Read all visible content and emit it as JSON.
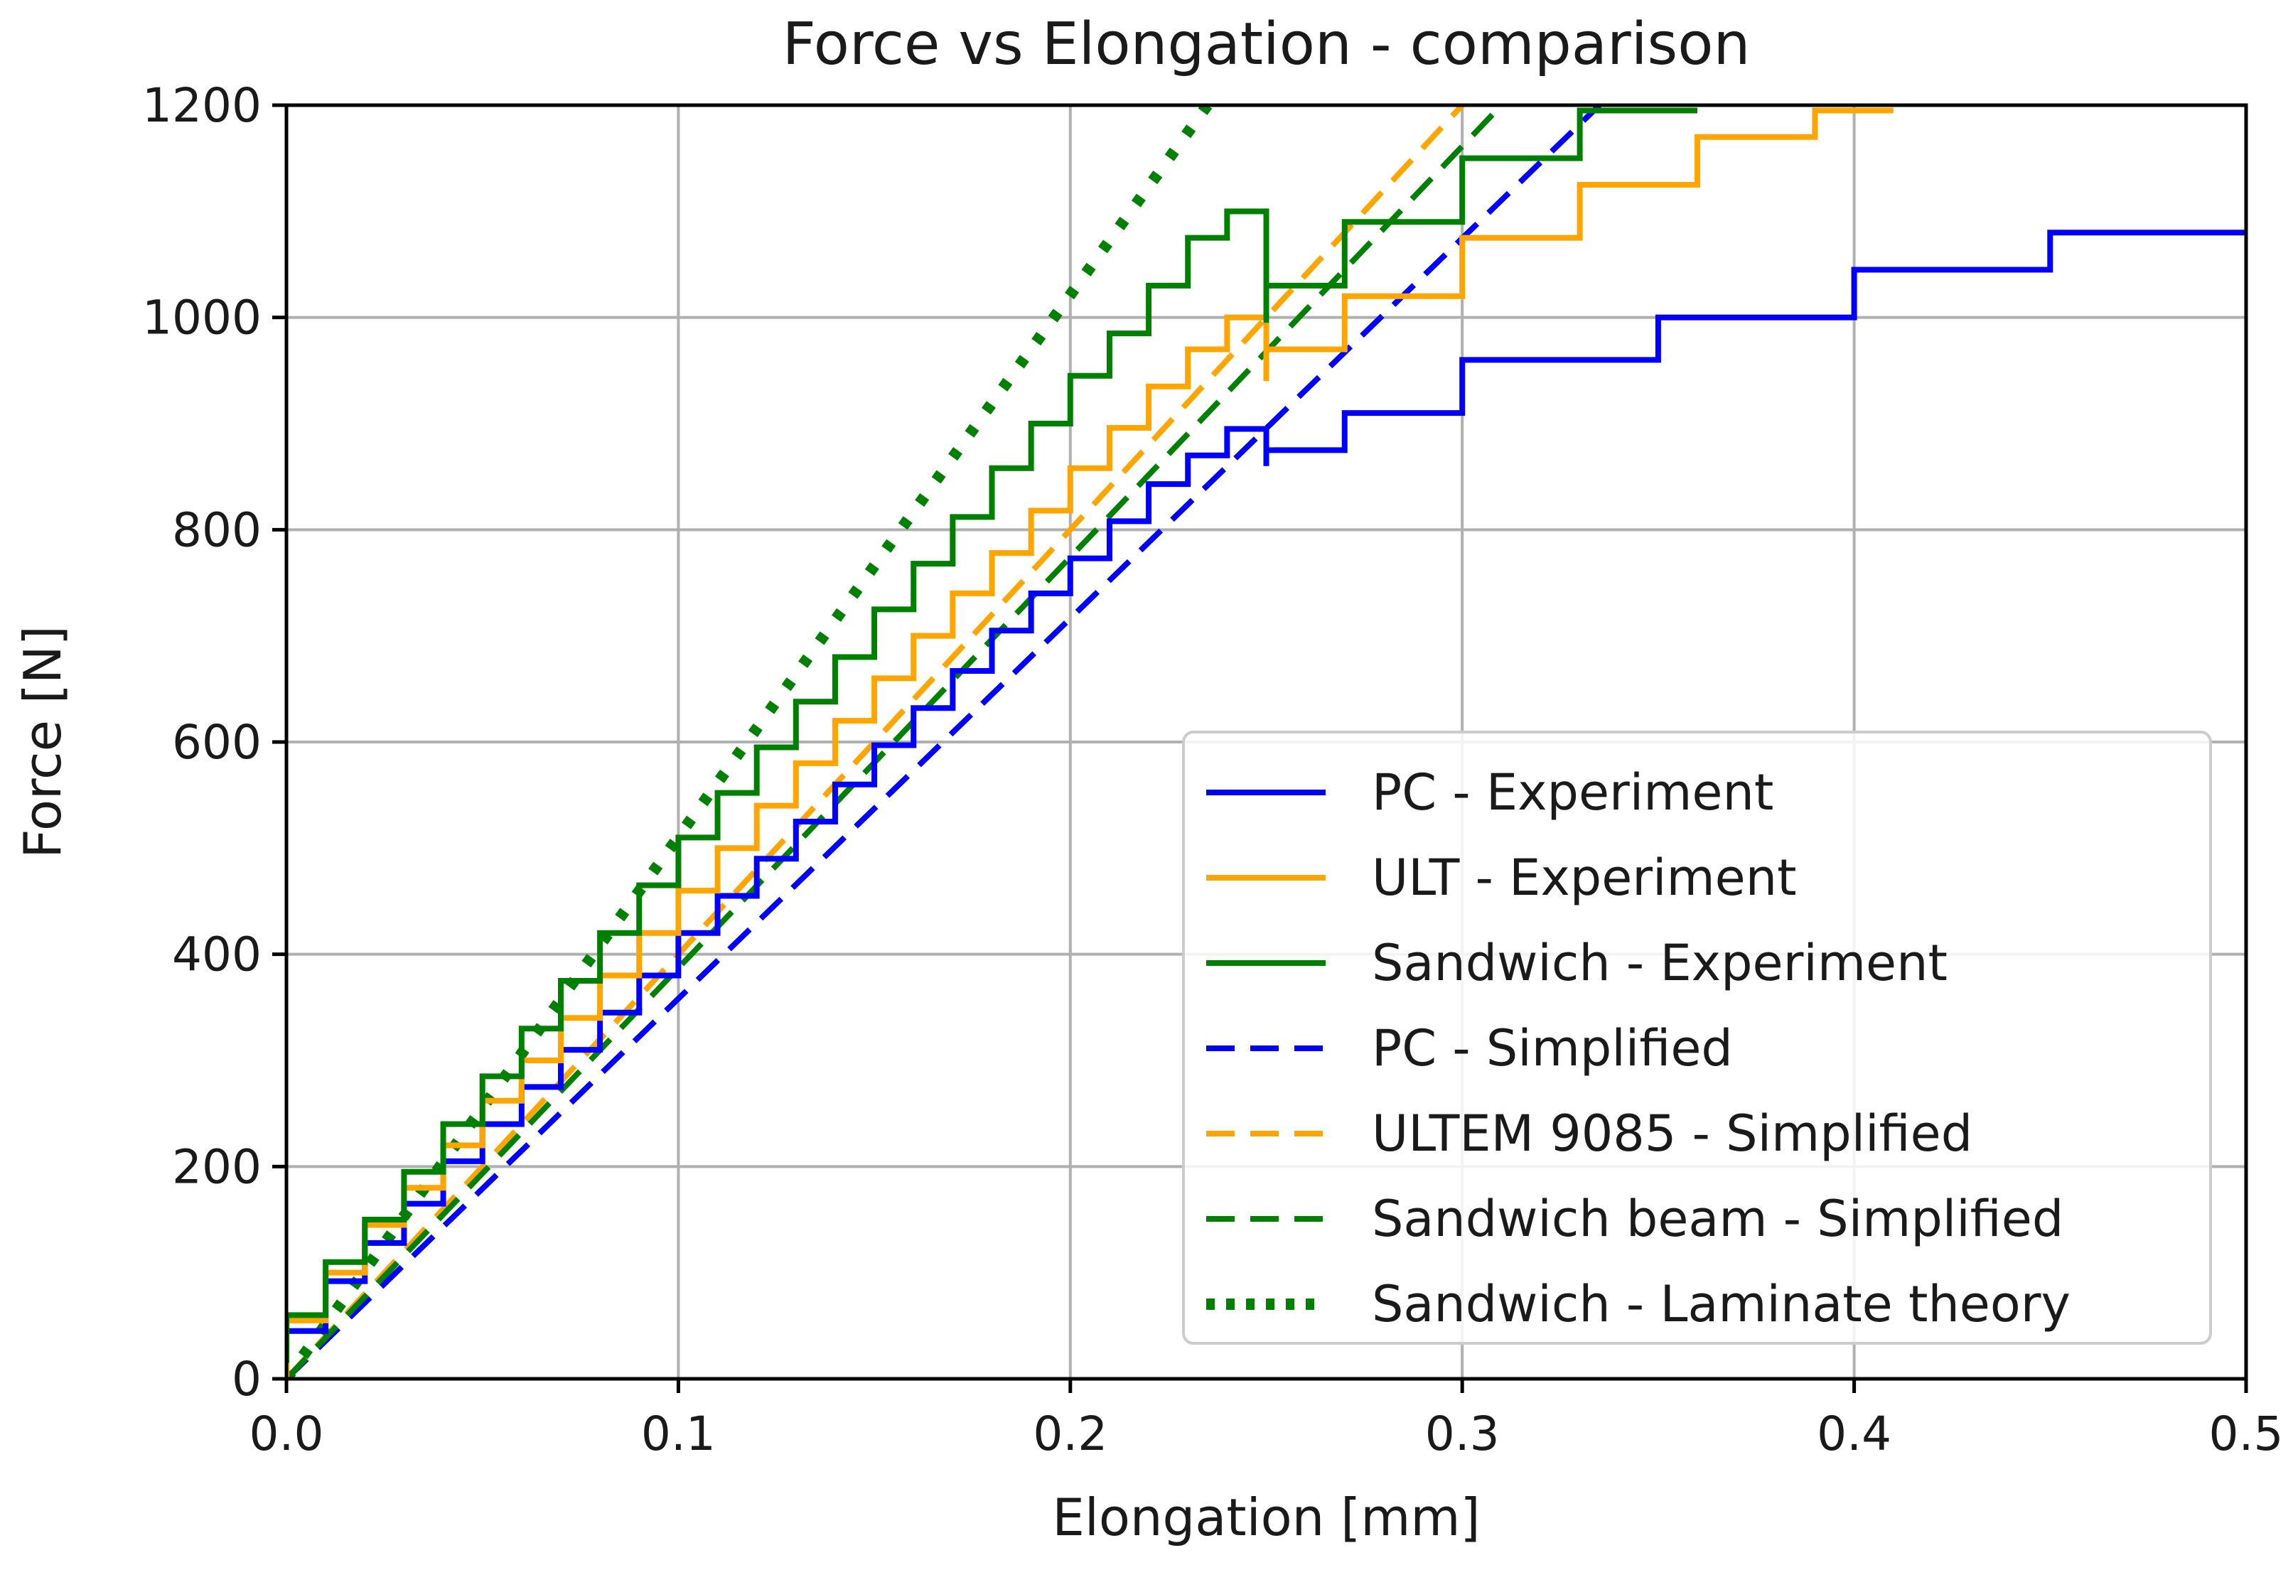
{
  "chart_data": {
    "type": "line",
    "title": "Force vs Elongation - comparison",
    "xlabel": "Elongation [mm]",
    "ylabel": "Force [N]",
    "xlim": [
      0,
      0.5
    ],
    "ylim": [
      0,
      1200
    ],
    "x_ticks": [
      0.0,
      0.1,
      0.2,
      0.3,
      0.4,
      0.5
    ],
    "x_tick_labels": [
      "0.0",
      "0.1",
      "0.2",
      "0.3",
      "0.4",
      "0.5"
    ],
    "y_ticks": [
      0,
      200,
      400,
      600,
      800,
      1000,
      1200
    ],
    "y_tick_labels": [
      "0",
      "200",
      "400",
      "600",
      "800",
      "1000",
      "1200"
    ],
    "grid": true,
    "legend_position": "lower-right",
    "series": [
      {
        "name": "PC - Experiment",
        "color": "#0000ff",
        "style": "solid",
        "x": [
          0,
          0.01,
          0.02,
          0.03,
          0.04,
          0.05,
          0.06,
          0.07,
          0.08,
          0.09,
          0.1,
          0.11,
          0.12,
          0.13,
          0.14,
          0.15,
          0.16,
          0.17,
          0.18,
          0.19,
          0.2,
          0.21,
          0.22,
          0.23,
          0.24,
          0.25,
          0.25,
          0.27,
          0.3,
          0.35,
          0.4,
          0.45,
          0.5
        ],
        "y": [
          0,
          45,
          92,
          128,
          165,
          205,
          240,
          275,
          310,
          345,
          380,
          420,
          455,
          490,
          525,
          560,
          597,
          632,
          667,
          705,
          740,
          773,
          808,
          843,
          870,
          895,
          860,
          875,
          910,
          960,
          1000,
          1045,
          1080
        ]
      },
      {
        "name": "ULT - Experiment",
        "color": "#ffa500",
        "style": "solid",
        "x": [
          0,
          0.01,
          0.02,
          0.03,
          0.04,
          0.05,
          0.06,
          0.07,
          0.08,
          0.09,
          0.1,
          0.11,
          0.12,
          0.13,
          0.14,
          0.15,
          0.16,
          0.17,
          0.18,
          0.19,
          0.2,
          0.21,
          0.22,
          0.23,
          0.24,
          0.25,
          0.25,
          0.27,
          0.3,
          0.33,
          0.36,
          0.39,
          0.41
        ],
        "y": [
          0,
          55,
          100,
          145,
          180,
          220,
          262,
          300,
          340,
          380,
          420,
          460,
          500,
          540,
          580,
          620,
          660,
          700,
          740,
          778,
          818,
          858,
          896,
          935,
          970,
          1000,
          940,
          970,
          1020,
          1075,
          1125,
          1170,
          1195
        ]
      },
      {
        "name": "Sandwich - Experiment",
        "color": "#008000",
        "style": "solid",
        "x": [
          0,
          0.01,
          0.02,
          0.03,
          0.04,
          0.05,
          0.06,
          0.07,
          0.08,
          0.09,
          0.1,
          0.11,
          0.12,
          0.13,
          0.14,
          0.15,
          0.16,
          0.17,
          0.18,
          0.19,
          0.2,
          0.21,
          0.22,
          0.23,
          0.24,
          0.25,
          0.25,
          0.27,
          0.3,
          0.33,
          0.36
        ],
        "y": [
          15,
          60,
          110,
          150,
          195,
          240,
          285,
          330,
          375,
          420,
          465,
          510,
          552,
          595,
          638,
          680,
          725,
          768,
          812,
          858,
          900,
          945,
          985,
          1030,
          1075,
          1100,
          995,
          1030,
          1090,
          1150,
          1195
        ]
      },
      {
        "name": "PC - Simplified",
        "color": "#0000ff",
        "style": "dashed",
        "x": [
          0,
          0.335
        ],
        "y": [
          0,
          1200
        ]
      },
      {
        "name": "ULTEM 9085 - Simplified",
        "color": "#ffa500",
        "style": "dashed",
        "x": [
          0,
          0.3
        ],
        "y": [
          0,
          1200
        ]
      },
      {
        "name": "Sandwich beam - Simplified",
        "color": "#008000",
        "style": "dashed",
        "x": [
          0,
          0.31
        ],
        "y": [
          0,
          1200
        ]
      },
      {
        "name": "Sandwich - Laminate theory",
        "color": "#008000",
        "style": "dotted",
        "x": [
          0,
          0.235
        ],
        "y": [
          0,
          1200
        ]
      }
    ]
  }
}
